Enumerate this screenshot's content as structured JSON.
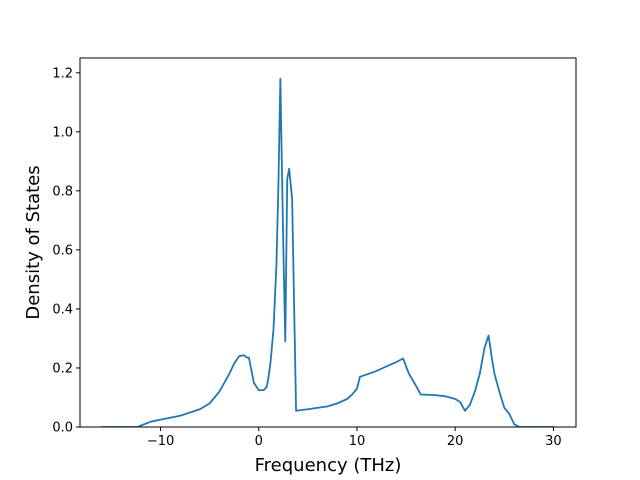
{
  "chart_data": {
    "type": "line",
    "title": "",
    "xlabel": "Frequency (THz)",
    "ylabel": "Density of States",
    "xlim": [
      -18.2,
      32.3
    ],
    "ylim": [
      0,
      1.25
    ],
    "grid": false,
    "legend": "none",
    "x_ticks": [
      -10,
      0,
      10,
      20,
      30
    ],
    "x_tick_labels": [
      "−10",
      "0",
      "10",
      "20",
      "30"
    ],
    "y_ticks": [
      0.0,
      0.2,
      0.4,
      0.6,
      0.8,
      1.0,
      1.2
    ],
    "y_tick_labels": [
      "0.0",
      "0.2",
      "0.4",
      "0.6",
      "0.8",
      "1.0",
      "1.2"
    ],
    "series": [
      {
        "color": "#1f77b4",
        "x": [
          -16,
          -13.5,
          -12.3,
          -12,
          -11,
          -10,
          -8,
          -6,
          -5,
          -4,
          -3,
          -2.5,
          -2,
          -1.5,
          -1.2,
          -1,
          -0.5,
          0,
          0.5,
          0.8,
          1,
          1.2,
          1.5,
          1.8,
          2,
          2.2,
          2.5,
          2.7,
          2.9,
          3.1,
          3.4,
          3.8,
          5,
          7,
          8,
          9,
          9.5,
          10,
          10.3,
          11,
          12,
          13,
          14,
          14.7,
          15,
          15.3,
          16,
          16.5,
          18,
          19,
          20,
          20.5,
          21,
          21.5,
          22,
          22.5,
          23,
          23.4,
          23.7,
          24,
          24.5,
          25,
          25.5,
          26,
          26.5,
          30
        ],
        "values": [
          0.0,
          0.0,
          0.0,
          0.005,
          0.018,
          0.025,
          0.038,
          0.06,
          0.08,
          0.12,
          0.18,
          0.215,
          0.24,
          0.243,
          0.235,
          0.235,
          0.15,
          0.125,
          0.125,
          0.135,
          0.17,
          0.22,
          0.33,
          0.55,
          0.82,
          1.18,
          0.61,
          0.29,
          0.84,
          0.875,
          0.77,
          0.055,
          0.06,
          0.07,
          0.08,
          0.095,
          0.11,
          0.13,
          0.17,
          0.178,
          0.19,
          0.205,
          0.22,
          0.232,
          0.205,
          0.18,
          0.14,
          0.11,
          0.108,
          0.104,
          0.095,
          0.085,
          0.055,
          0.075,
          0.12,
          0.18,
          0.27,
          0.31,
          0.24,
          0.18,
          0.12,
          0.065,
          0.045,
          0.01,
          0.0,
          0.0
        ]
      }
    ]
  }
}
